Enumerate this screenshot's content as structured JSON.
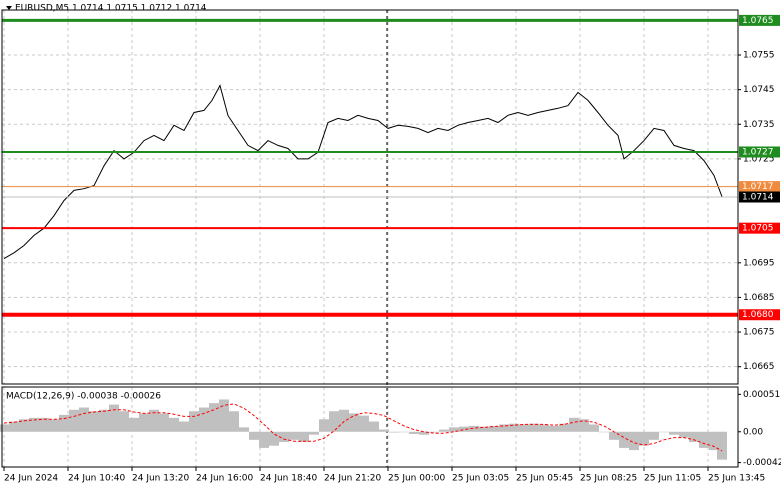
{
  "chart_data": [
    {
      "type": "line",
      "title": "EURUSD,M5  1.0714 1.0715 1.0712 1.0714",
      "x": [
        0,
        5,
        10,
        15,
        20,
        25,
        30,
        35,
        40,
        45,
        50,
        55,
        60,
        65,
        70,
        75,
        80,
        85,
        90,
        95,
        100,
        104,
        108,
        112,
        117,
        122,
        127,
        132,
        137,
        142,
        147,
        152,
        157,
        162,
        167,
        172,
        177,
        182,
        187,
        192,
        197,
        202,
        207,
        212,
        217,
        222,
        227,
        232,
        237,
        242,
        247,
        252,
        257,
        262,
        267,
        272,
        277,
        282,
        287,
        292,
        297,
        302,
        307,
        310,
        315,
        320,
        325,
        330,
        335,
        340,
        345,
        350,
        355,
        359
      ],
      "series": [
        {
          "color": "#000000",
          "values": [
            1.06962,
            1.06979,
            1.07,
            1.07029,
            1.0705,
            1.07086,
            1.0713,
            1.07159,
            1.07164,
            1.07173,
            1.0723,
            1.07274,
            1.0725,
            1.07269,
            1.07303,
            1.07318,
            1.07303,
            1.07347,
            1.07332,
            1.07384,
            1.0739,
            1.07419,
            1.07462,
            1.07375,
            1.07332,
            1.07289,
            1.07274,
            1.07303,
            1.07289,
            1.0728,
            1.0725,
            1.0725,
            1.07269,
            1.07355,
            1.07367,
            1.07361,
            1.07376,
            1.07367,
            1.07361,
            1.07338,
            1.07347,
            1.07344,
            1.07338,
            1.07326,
            1.07338,
            1.07332,
            1.07347,
            1.07355,
            1.07361,
            1.07367,
            1.07355,
            1.07376,
            1.07384,
            1.07376,
            1.07384,
            1.0739,
            1.07396,
            1.07404,
            1.07442,
            1.07419,
            1.07384,
            1.07347,
            1.07318,
            1.0725,
            1.07274,
            1.07303,
            1.07338,
            1.07332,
            1.07289,
            1.0728,
            1.07274,
            1.07245,
            1.07202,
            1.07141
          ]
        }
      ],
      "xlim": [
        -1,
        367
      ],
      "xticks": [
        {
          "value": 0,
          "label": "24 Jun 2024"
        },
        {
          "value": 32,
          "label": "24 Jun 10:40"
        },
        {
          "value": 64,
          "label": "24 Jun 13:20"
        },
        {
          "value": 96,
          "label": "24 Jun 16:00"
        },
        {
          "value": 128,
          "label": "24 Jun 18:40"
        },
        {
          "value": 160,
          "label": "24 Jun 21:20"
        },
        {
          "value": 192,
          "label": "25 Jun 00:00"
        },
        {
          "value": 224,
          "label": "25 Jun 03:05"
        },
        {
          "value": 256,
          "label": "25 Jun 05:45"
        },
        {
          "value": 288,
          "label": "25 Jun 08:25"
        },
        {
          "value": 320,
          "label": "25 Jun 11:05"
        },
        {
          "value": 352,
          "label": "25 Jun 13:45"
        }
      ],
      "ylim": [
        1.066,
        1.0768
      ],
      "yticks": [
        1.0755,
        1.0745,
        1.0735,
        1.0725,
        1.0695,
        1.0685,
        1.0675,
        1.0665
      ],
      "grid": true,
      "levels": [
        {
          "value": 1.0765,
          "color": "#1e8c1e",
          "line_width": 3
        },
        {
          "value": 1.0727,
          "color": "#1e8c1e",
          "line_width": 2
        },
        {
          "value": 1.0717,
          "color": "#f08a3c",
          "line_width": 1
        },
        {
          "value": 1.0714,
          "color": "#000000",
          "line_color": "#c0c0c0",
          "line_width": 1
        },
        {
          "value": 1.0705,
          "color": "#ff0000",
          "line_width": 2
        },
        {
          "value": 1.068,
          "label": "1.0680",
          "color": "#ff0000",
          "line_width": 4
        }
      ]
    },
    {
      "type": "bar",
      "title": "MACD(12,26,9) -0.00038 -0.00026",
      "x": [
        0,
        5,
        10,
        15,
        20,
        25,
        30,
        35,
        40,
        45,
        50,
        55,
        60,
        65,
        70,
        75,
        80,
        85,
        90,
        95,
        100,
        105,
        110,
        115,
        120,
        125,
        130,
        135,
        140,
        145,
        150,
        155,
        160,
        165,
        170,
        175,
        180,
        185,
        190,
        195,
        200,
        205,
        210,
        215,
        220,
        225,
        230,
        235,
        240,
        245,
        250,
        255,
        260,
        265,
        270,
        275,
        280,
        285,
        290,
        295,
        300,
        305,
        310,
        315,
        320,
        325,
        330,
        335,
        340,
        345,
        350,
        355,
        359
      ],
      "series": [
        {
          "type": "bar",
          "color": "#c0c0c0",
          "values": [
            0.0001,
            0.00014,
            0.00017,
            0.00019,
            0.00019,
            0.00017,
            0.00023,
            0.0003,
            0.00033,
            0.00028,
            0.0003,
            0.00037,
            0.00028,
            0.00019,
            0.00025,
            0.0003,
            0.00025,
            0.00019,
            0.00014,
            0.00028,
            0.00033,
            0.00039,
            0.00044,
            0.00028,
            6e-05,
            -0.00011,
            -0.00022,
            -0.00019,
            -0.00014,
            -0.00011,
            -0.00014,
            -4e-05,
            0.00017,
            0.00028,
            0.0003,
            0.00025,
            0.00022,
            0.00014,
            3e-05,
            -1e-05,
            0,
            -3e-05,
            -4e-05,
            -1e-05,
            3e-05,
            6e-05,
            7e-05,
            8e-05,
            7e-05,
            8e-05,
            0.0001,
            0.00011,
            0.0001,
            0.00011,
            0.0001,
            8e-05,
            0.00011,
            0.00019,
            0.00017,
            0.0001,
            0,
            -0.00011,
            -0.00022,
            -0.00025,
            -0.00019,
            -0.00011,
            0,
            -4e-05,
            -8e-05,
            -0.00014,
            -0.00022,
            -0.00025,
            -0.00038
          ]
        },
        {
          "type": "line",
          "color": "#ff0000",
          "dashed": true,
          "values": [
            0.00012,
            0.00013,
            0.00015,
            0.00016,
            0.00017,
            0.00017,
            0.00018,
            0.00021,
            0.00025,
            0.00027,
            0.00028,
            0.0003,
            0.0003,
            0.00027,
            0.00025,
            0.00026,
            0.00026,
            0.00024,
            0.00021,
            0.00021,
            0.00025,
            0.0003,
            0.00036,
            0.00038,
            0.00032,
            0.00022,
            0.0001,
            -3e-05,
            -0.0001,
            -0.00013,
            -0.00013,
            -0.00013,
            -9e-05,
            1e-05,
            0.00014,
            0.00022,
            0.00026,
            0.00025,
            0.00022,
            0.00015,
            8e-05,
            3e-05,
            0,
            -2e-05,
            -2e-05,
            0,
            3e-05,
            5e-05,
            6e-05,
            7e-05,
            8e-05,
            9e-05,
            0.0001,
            0.0001,
            0.0001,
            9e-05,
            0.0001,
            0.00013,
            0.00015,
            0.00013,
            8e-05,
            0,
            -8e-05,
            -0.00015,
            -0.00018,
            -0.00016,
            -0.00011,
            -8e-05,
            -8e-05,
            -0.00011,
            -0.00016,
            -0.0002,
            -0.00026
          ]
        }
      ],
      "ylim": [
        -0.00048,
        0.00061
      ],
      "yticks": [
        0.00051,
        {
          "value": 0,
          "label": "0.00"
        },
        -0.00042
      ]
    }
  ]
}
